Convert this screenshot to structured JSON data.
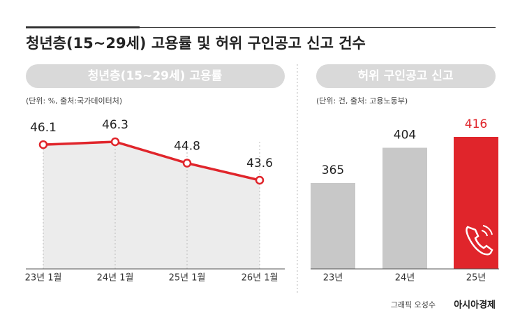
{
  "title": "청년층(15~29세) 고용률 및 허위 구인공고 신고 건수",
  "chart_data": [
    {
      "type": "line",
      "title": "청년층(15~29세) 고용률",
      "subtitle": "(단위: %, 출처:국가데이터처)",
      "categories": [
        "23년 1월",
        "24년 1월",
        "25년 1월",
        "26년 1월"
      ],
      "values": [
        46.1,
        46.3,
        44.8,
        43.6
      ],
      "color": "#e0252b"
    },
    {
      "type": "bar",
      "title": "허위 구인공고 신고",
      "subtitle": "(단위: 건, 출처: 고용노동부)",
      "categories": [
        "23년",
        "24년",
        "25년"
      ],
      "values": [
        365,
        404,
        416
      ],
      "colors": [
        "#c8c8c8",
        "#c8c8c8",
        "#e0252b"
      ]
    }
  ],
  "credit": "그래픽 오성수",
  "publisher": "아시아경제"
}
